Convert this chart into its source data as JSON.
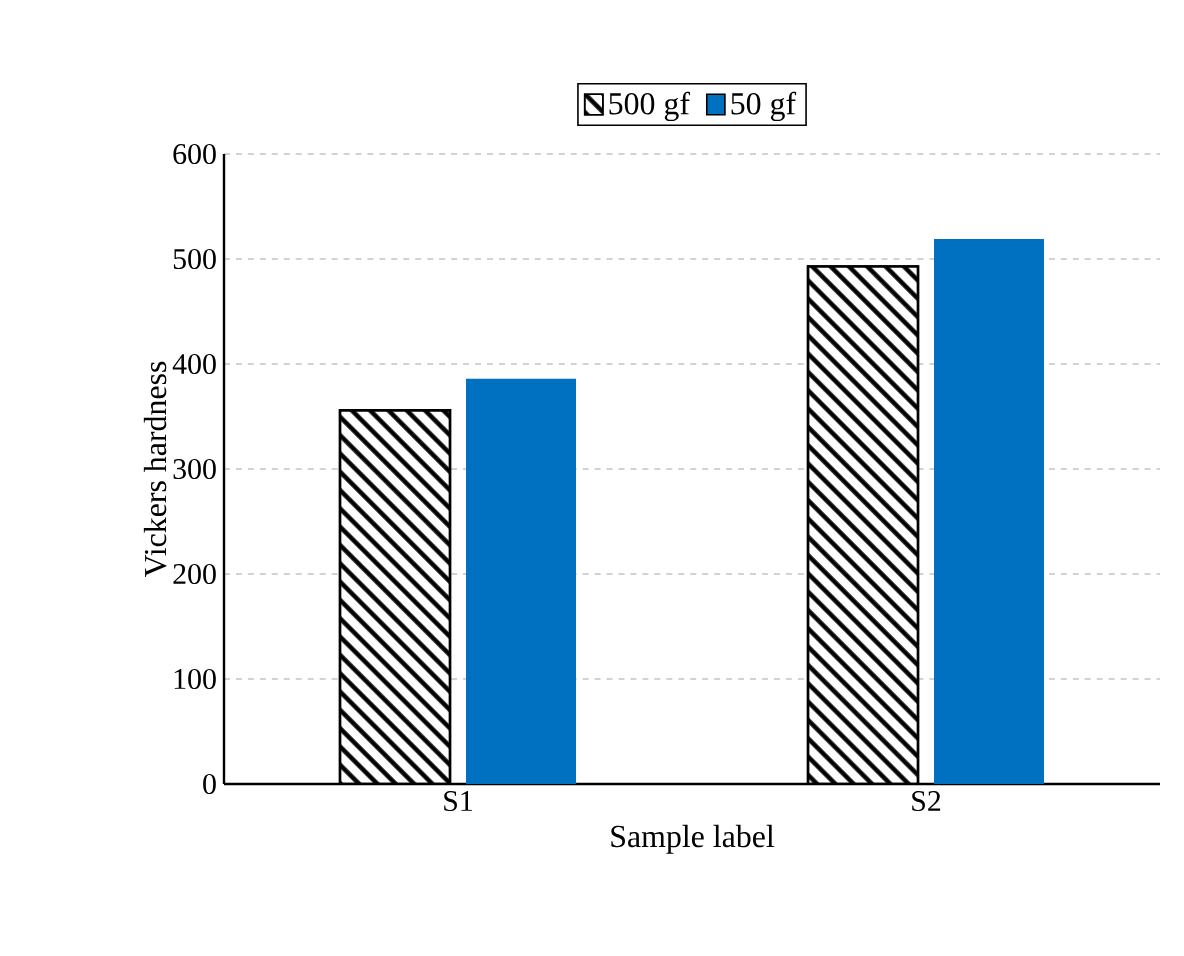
{
  "chart_data": {
    "type": "bar",
    "xlabel": "Sample label",
    "ylabel": "Vickers hardness",
    "categories": [
      "S1",
      "S2"
    ],
    "series": [
      {
        "name": "500 gf",
        "color": "#000000",
        "values": [
          356,
          493
        ]
      },
      {
        "name": "50 gf",
        "color": "#0070c0",
        "values": [
          386,
          519
        ]
      }
    ],
    "ylim": [
      0,
      600
    ],
    "yticks": [
      0,
      100,
      200,
      300,
      400,
      500,
      600
    ],
    "grid": "y",
    "legend": "top"
  }
}
